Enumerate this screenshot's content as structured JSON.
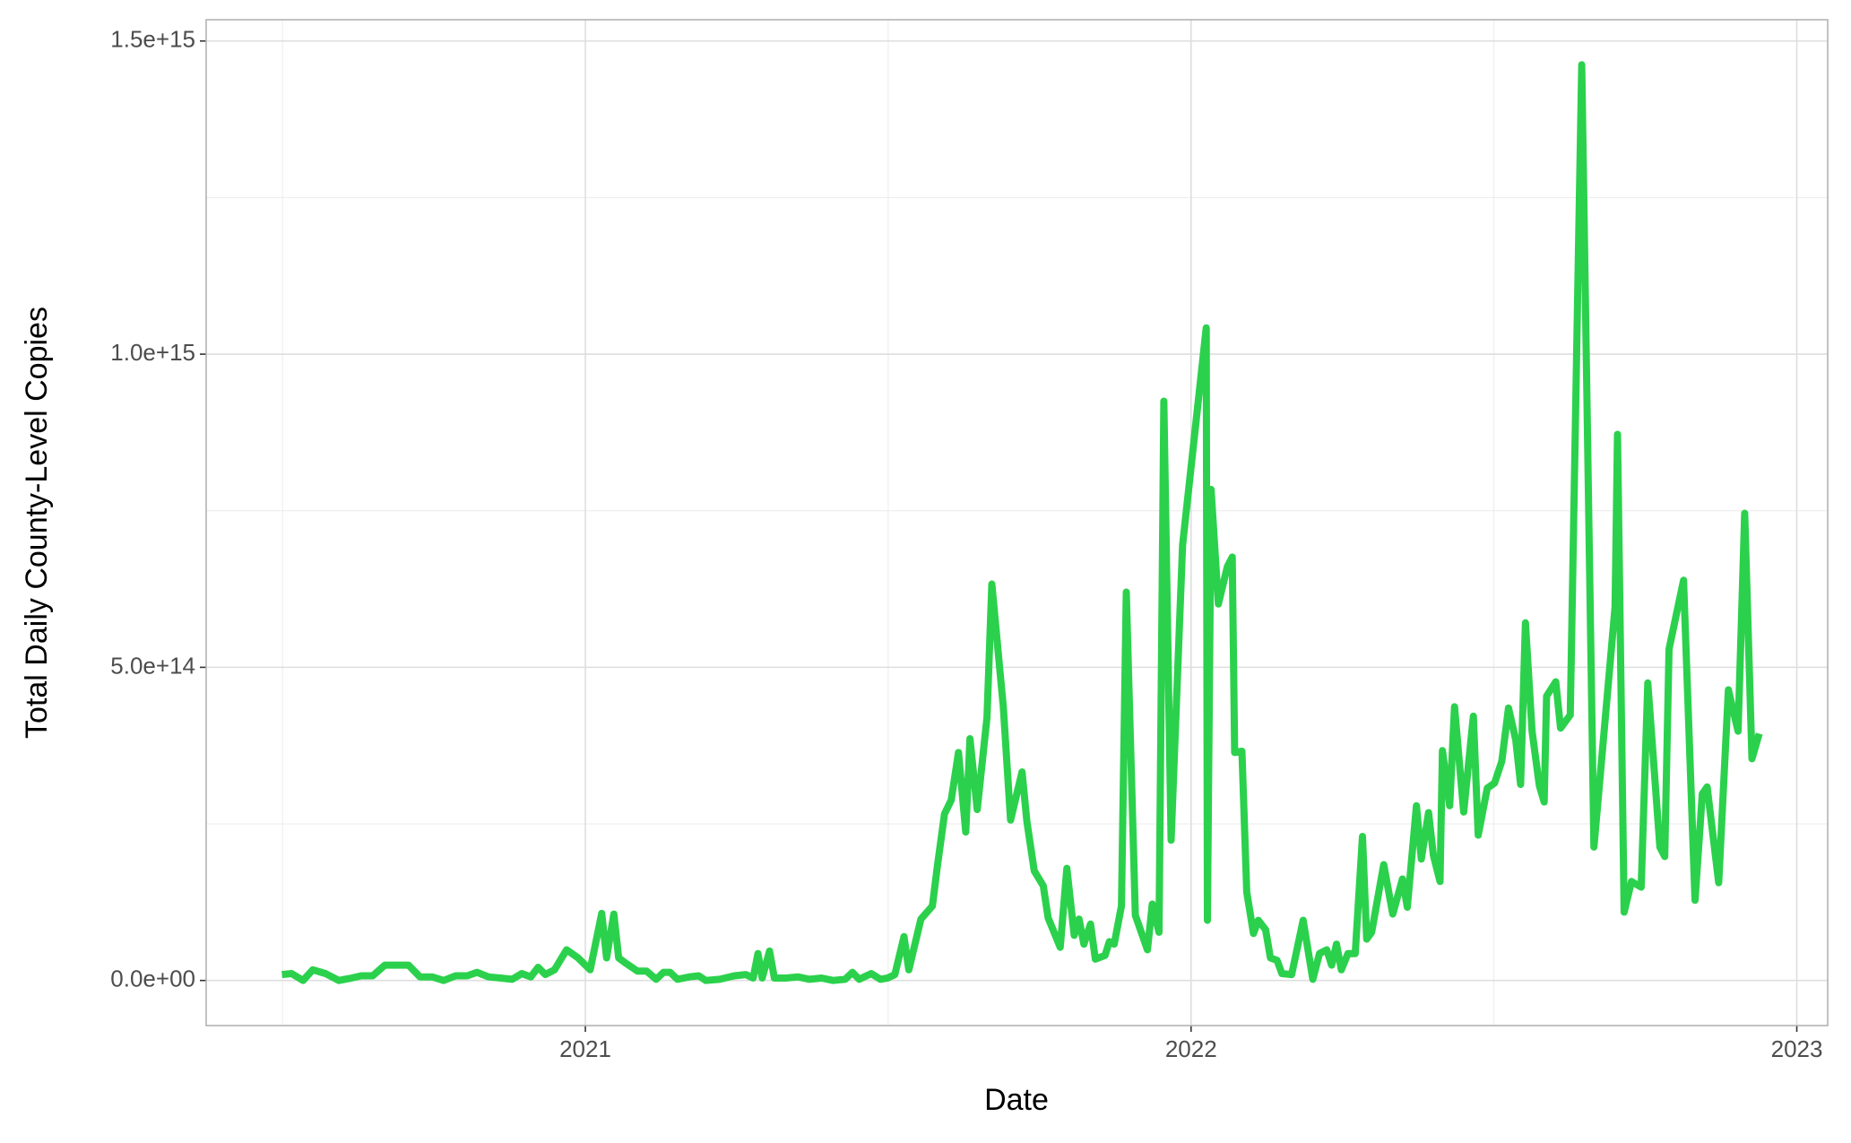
{
  "chart_data": {
    "type": "line",
    "x_label": "Date",
    "y_label": "Total Daily County-Level Copies",
    "x": [
      2020.499,
      2020.515,
      2020.534,
      2020.55,
      2020.571,
      2020.593,
      2020.614,
      2020.63,
      2020.649,
      2020.669,
      2020.688,
      2020.708,
      2020.727,
      2020.747,
      2020.766,
      2020.786,
      2020.805,
      2020.821,
      2020.84,
      2020.86,
      2020.879,
      2020.895,
      2020.91,
      2020.922,
      2020.934,
      2020.949,
      2020.969,
      2020.988,
      2021.008,
      2021.027,
      2021.035,
      2021.047,
      2021.055,
      2021.066,
      2021.086,
      2021.101,
      2021.117,
      2021.129,
      2021.14,
      2021.152,
      2021.172,
      2021.187,
      2021.199,
      2021.222,
      2021.246,
      2021.265,
      2021.277,
      2021.285,
      2021.292,
      2021.304,
      2021.312,
      2021.331,
      2021.351,
      2021.37,
      2021.39,
      2021.409,
      2021.429,
      2021.441,
      2021.452,
      2021.472,
      2021.487,
      2021.499,
      2021.511,
      2021.526,
      2021.534,
      2021.554,
      2021.573,
      2021.581,
      2021.593,
      2021.604,
      2021.616,
      2021.628,
      2021.635,
      2021.647,
      2021.663,
      2021.671,
      2021.69,
      2021.702,
      2021.721,
      2021.729,
      2021.741,
      2021.756,
      2021.764,
      2021.784,
      2021.795,
      2021.807,
      2021.815,
      2021.823,
      2021.834,
      2021.842,
      2021.858,
      2021.865,
      2021.873,
      2021.885,
      2021.893,
      2021.908,
      2021.928,
      2021.936,
      2021.947,
      2021.955,
      2021.967,
      2021.986,
      2022.025,
      2022.027,
      2022.033,
      2022.045,
      2022.06,
      2022.068,
      2022.072,
      2022.084,
      2022.092,
      2022.103,
      2022.111,
      2022.123,
      2022.131,
      2022.142,
      2022.15,
      2022.166,
      2022.185,
      2022.201,
      2022.212,
      2022.224,
      2022.232,
      2022.24,
      2022.248,
      2022.259,
      2022.271,
      2022.283,
      2022.29,
      2022.298,
      2022.318,
      2022.333,
      2022.349,
      2022.357,
      2022.372,
      2022.38,
      2022.392,
      2022.4,
      2022.411,
      2022.415,
      2022.427,
      2022.435,
      2022.45,
      2022.466,
      2022.474,
      2022.489,
      2022.501,
      2022.513,
      2022.524,
      2022.536,
      2022.544,
      2022.552,
      2022.563,
      2022.575,
      2022.583,
      2022.587,
      2022.602,
      2022.61,
      2022.626,
      2022.645,
      2022.665,
      2022.676,
      2022.7,
      2022.704,
      2022.715,
      2022.727,
      2022.743,
      2022.754,
      2022.774,
      2022.782,
      2022.789,
      2022.813,
      2022.832,
      2022.844,
      2022.852,
      2022.871,
      2022.887,
      2022.903,
      2022.914,
      2022.926,
      2022.938
    ],
    "series": [
      {
        "color": "#2bd14c",
        "values": [
          9400000000000.0,
          11000000000000.0,
          0,
          17000000000000.0,
          11000000000000.0,
          0,
          3800000000000.0,
          7500000000000.0,
          7500000000000.0,
          24500000000000.0,
          24500000000000.0,
          24500000000000.0,
          5700000000000.0,
          5700000000000.0,
          0,
          7500000000000.0,
          7500000000000.0,
          13000000000000.0,
          5700000000000.0,
          3800000000000.0,
          1900000000000.0,
          11000000000000.0,
          5700000000000.0,
          21000000000000.0,
          9400000000000.0,
          17000000000000.0,
          49000000000000.0,
          36000000000000.0,
          17000000000000.0,
          107000000000000.0,
          36000000000000.0,
          106000000000000.0,
          36000000000000.0,
          28000000000000.0,
          15000000000000.0,
          15000000000000.0,
          1900000000000.0,
          13000000000000.0,
          13000000000000.0,
          1900000000000.0,
          5700000000000.0,
          7500000000000.0,
          0,
          1900000000000.0,
          7500000000000.0,
          9400000000000.0,
          3800000000000.0,
          43000000000000.0,
          3800000000000.0,
          47000000000000.0,
          3800000000000.0,
          3800000000000.0,
          5700000000000.0,
          1900000000000.0,
          3800000000000.0,
          0,
          1900000000000.0,
          13000000000000.0,
          1900000000000.0,
          11000000000000.0,
          1900000000000.0,
          3800000000000.0,
          9400000000000.0,
          70000000000000.0,
          17000000000000.0,
          98000000000000.0,
          119000000000000.0,
          181000000000000.0,
          266000000000000.0,
          288000000000000.0,
          364000000000000.0,
          237000000000000.0,
          386000000000000.0,
          273000000000000.0,
          420000000000000.0,
          633000000000000.0,
          437000000000000.0,
          256000000000000.0,
          333000000000000.0,
          254000000000000.0,
          175000000000000.0,
          151000000000000.0,
          100000000000000.0,
          53000000000000.0,
          179000000000000.0,
          72000000000000.0,
          98000000000000.0,
          58000000000000.0,
          90000000000000.0,
          34000000000000.0,
          40000000000000.0,
          62000000000000.0,
          58000000000000.0,
          119000000000000.0,
          620000000000000.0,
          104000000000000.0,
          49000000000000.0,
          122000000000000.0,
          77000000000000.0,
          925000000000000.0,
          224000000000000.0,
          695000000000000.0,
          1042000000000000.0,
          96000000000000.0,
          784000000000000.0,
          601000000000000.0,
          661000000000000.0,
          676000000000000.0,
          364000000000000.0,
          366000000000000.0,
          141000000000000.0,
          75000000000000.0,
          96000000000000.0,
          81000000000000.0,
          36000000000000.0,
          32000000000000.0,
          11000000000000.0,
          9400000000000.0,
          96000000000000.0,
          1900000000000.0,
          43000000000000.0,
          49000000000000.0,
          24500000000000.0,
          58000000000000.0,
          17000000000000.0,
          43000000000000.0,
          43000000000000.0,
          230000000000000.0,
          66000000000000.0,
          77000000000000.0,
          185000000000000.0,
          106000000000000.0,
          162000000000000.0,
          117000000000000.0,
          279000000000000.0,
          194000000000000.0,
          268000000000000.0,
          200000000000000.0,
          158000000000000.0,
          367000000000000.0,
          279000000000000.0,
          437000000000000.0,
          269000000000000.0,
          422000000000000.0,
          232000000000000.0,
          307000000000000.0,
          315000000000000.0,
          350000000000000.0,
          435000000000000.0,
          384000000000000.0,
          313000000000000.0,
          571000000000000.0,
          398000000000000.0,
          311000000000000.0,
          285000000000000.0,
          454000000000000.0,
          477000000000000.0,
          403000000000000.0,
          424000000000000.0,
          1462000000000000.0,
          213000000000000.0,
          333000000000000.0,
          597000000000000.0,
          872000000000000.0,
          109000000000000.0,
          158000000000000.0,
          149000000000000.0,
          475000000000000.0,
          213000000000000.0,
          198000000000000.0,
          529000000000000.0,
          639000000000000.0,
          128000000000000.0,
          298000000000000.0,
          309000000000000.0,
          156000000000000.0,
          464000000000000.0,
          398000000000000.0,
          746000000000000.0,
          354000000000000.0,
          394000000000000.0
        ]
      }
    ],
    "xlim": [
      2020.374,
      2023.051
    ],
    "xticks": [
      2021,
      2022,
      2023
    ],
    "minor_xticks": [
      2020.5,
      2021.5,
      2022.5
    ],
    "ylim": [
      -72000000000000.0,
      1534000000000000.0
    ],
    "yticks": [
      {
        "value": 0,
        "label": "0.0e+00"
      },
      {
        "value": 500000000000000.0,
        "label": "5.0e+14"
      },
      {
        "value": 1000000000000000.0,
        "label": "1.0e+15"
      },
      {
        "value": 1500000000000000.0,
        "label": "1.5e+15"
      }
    ],
    "minor_yticks": [
      250000000000000.0,
      750000000000000.0,
      1250000000000000.0
    ],
    "grid": true
  }
}
